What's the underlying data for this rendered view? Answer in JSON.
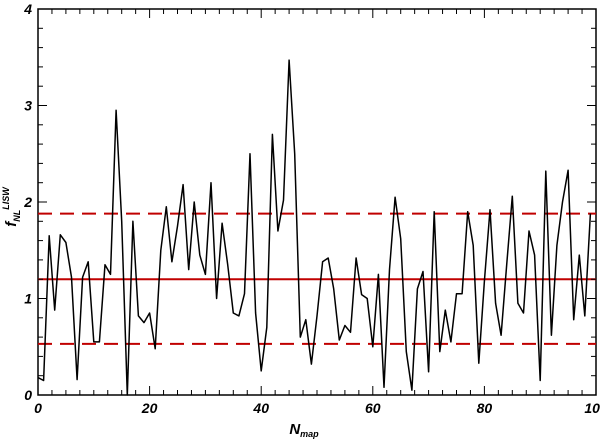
{
  "chart_data": {
    "type": "line",
    "xlabel": "N",
    "xlabel_sub": "map",
    "ylabel": "f",
    "ylabel_sub": "NL",
    "ylabel_sup": "LISW",
    "xlim": [
      0,
      100
    ],
    "ylim": [
      0,
      4
    ],
    "xticks": [
      0,
      20,
      40,
      60,
      80,
      100
    ],
    "yticks": [
      0,
      1,
      2,
      3,
      4
    ],
    "grid": false,
    "line_color": "#000000",
    "reference_color": "#c00000",
    "series": [
      {
        "x": [
          0,
          1,
          2,
          3,
          4,
          5,
          6,
          7,
          8,
          9,
          10,
          11,
          12,
          13,
          14,
          15,
          16,
          17,
          18,
          19,
          20,
          21,
          22,
          23,
          24,
          25,
          26,
          27,
          28,
          29,
          30,
          31,
          32,
          33,
          34,
          35,
          36,
          37,
          38,
          39,
          40,
          41,
          42,
          43,
          44,
          45,
          46,
          47,
          48,
          49,
          50,
          51,
          52,
          53,
          54,
          55,
          56,
          57,
          58,
          59,
          60,
          61,
          62,
          63,
          64,
          65,
          66,
          67,
          68,
          69,
          70,
          71,
          72,
          73,
          74,
          75,
          76,
          77,
          78,
          79,
          80,
          81,
          82,
          83,
          84,
          85,
          86,
          87,
          88,
          89,
          90,
          91,
          92,
          93,
          94,
          95,
          96,
          97,
          98,
          99
        ],
        "values": [
          0.18,
          0.15,
          1.65,
          0.88,
          1.66,
          1.58,
          1.22,
          0.16,
          1.22,
          1.38,
          0.55,
          0.55,
          1.35,
          1.25,
          2.95,
          1.8,
          0.0,
          1.8,
          0.82,
          0.75,
          0.85,
          0.48,
          1.5,
          1.95,
          1.38,
          1.75,
          2.18,
          1.3,
          2.0,
          1.45,
          1.25,
          2.2,
          1.0,
          1.78,
          1.35,
          0.85,
          0.82,
          1.05,
          2.5,
          0.85,
          0.25,
          0.7,
          2.7,
          1.7,
          2.02,
          3.47,
          2.5,
          0.6,
          0.78,
          0.32,
          0.82,
          1.38,
          1.42,
          1.1,
          0.57,
          0.72,
          0.65,
          1.42,
          1.04,
          1.0,
          0.5,
          1.25,
          0.08,
          1.3,
          2.05,
          1.62,
          0.45,
          0.05,
          1.1,
          1.28,
          0.24,
          1.9,
          0.45,
          0.88,
          0.55,
          1.05,
          1.05,
          1.9,
          1.55,
          0.33,
          1.18,
          1.92,
          0.95,
          0.62,
          1.35,
          2.06,
          0.95,
          0.85,
          1.7,
          1.45,
          0.15,
          2.32,
          0.62,
          1.55,
          2.0,
          2.33,
          0.78,
          1.45,
          0.82,
          1.88
        ]
      }
    ],
    "reference_lines": [
      {
        "y": 1.2,
        "style": "solid"
      },
      {
        "y": 1.88,
        "style": "dashed"
      },
      {
        "y": 0.53,
        "style": "dashed"
      }
    ]
  }
}
